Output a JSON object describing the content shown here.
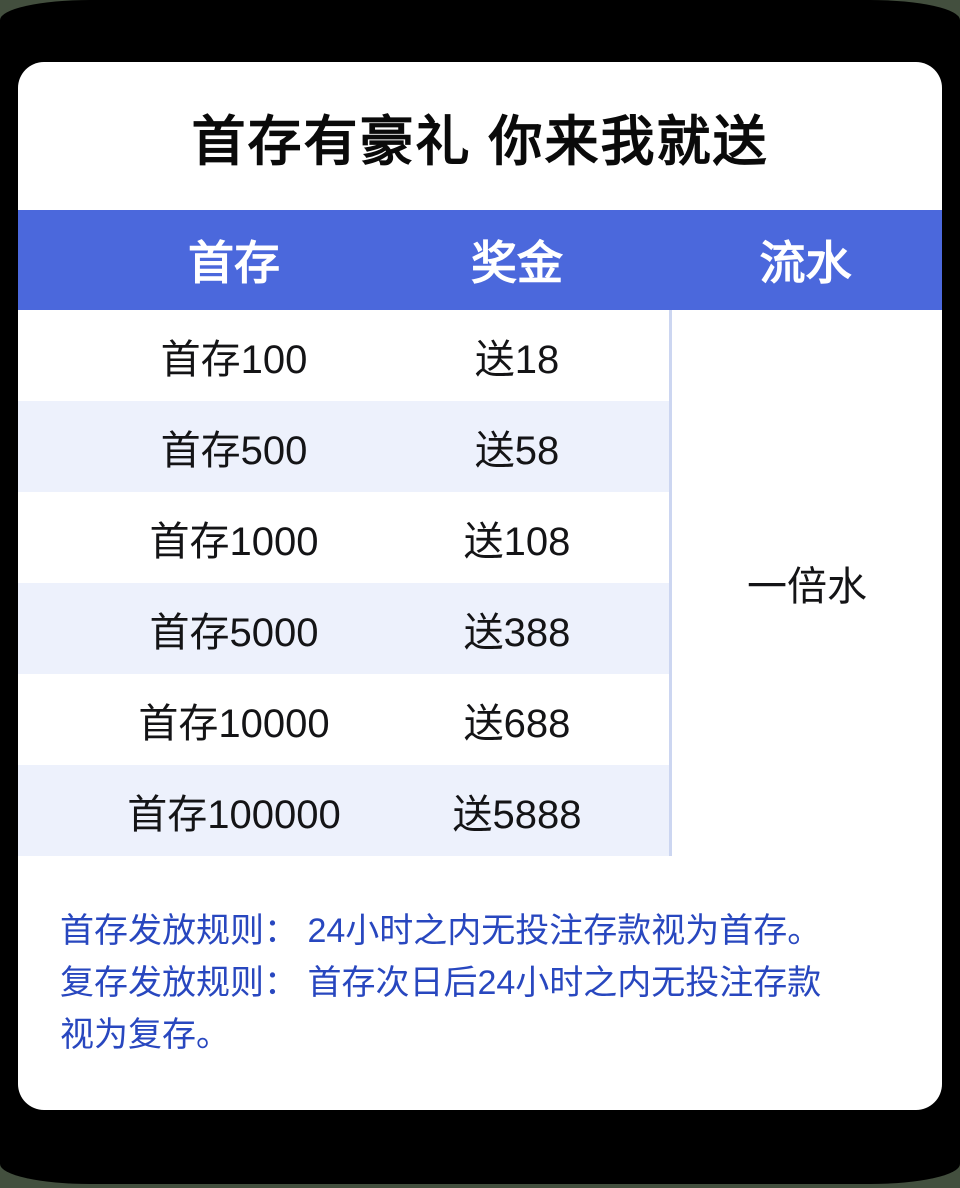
{
  "page": {
    "title": "首存有豪礼 你来我就送"
  },
  "table": {
    "headers": [
      {
        "label": "首存"
      },
      {
        "label": "奖金"
      },
      {
        "label": "流水"
      }
    ],
    "rows": [
      {
        "deposit": "首存100",
        "bonus": "送18"
      },
      {
        "deposit": "首存500",
        "bonus": "送58"
      },
      {
        "deposit": "首存1000",
        "bonus": "送108"
      },
      {
        "deposit": "首存5000",
        "bonus": "送388"
      },
      {
        "deposit": "首存10000",
        "bonus": "送688"
      },
      {
        "deposit": "首存100000",
        "bonus": "送5888"
      }
    ],
    "turnover": "一倍水"
  },
  "rules": [
    "首存发放规则： 24小时之内无投注存款视为首存。",
    "复存发放规则： 首存次日后24小时之内无投注存款视为复存。"
  ],
  "colors": {
    "header_bg": "#4b68dc",
    "header_text": "#ffffff",
    "row_stripe": "#edf1fc",
    "divider": "#ccd6f1",
    "rules_text": "#2847bf",
    "card_bg": "#ffffff",
    "frame_bg": "#000000",
    "page_bg": "#434f3e",
    "title_text": "#0a0a0a",
    "cell_text": "#141416"
  }
}
